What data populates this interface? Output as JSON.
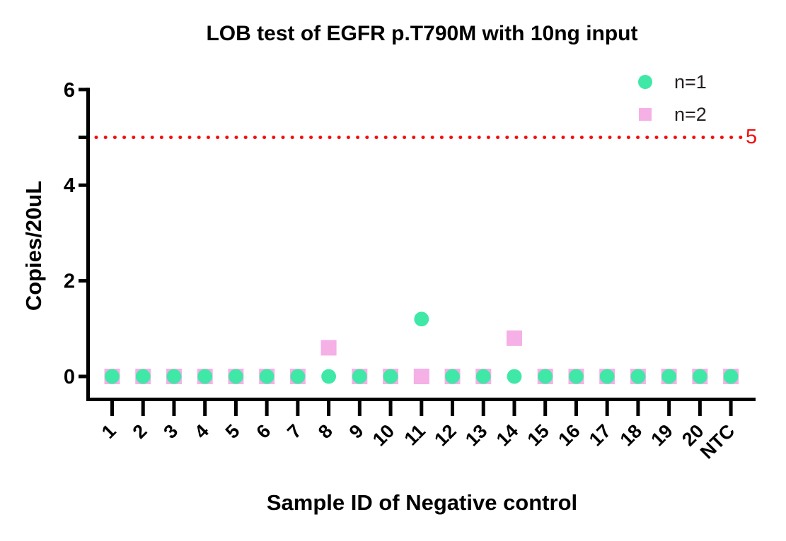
{
  "chart_data": {
    "type": "scatter",
    "title": "LOB test of EGFR p.T790M with 10ng input",
    "xlabel": "Sample ID of Negative control",
    "ylabel": "Copies/20uL",
    "categories": [
      "1",
      "2",
      "3",
      "4",
      "5",
      "6",
      "7",
      "8",
      "9",
      "10",
      "11",
      "12",
      "13",
      "14",
      "15",
      "16",
      "17",
      "18",
      "19",
      "20",
      "NTC"
    ],
    "series": [
      {
        "name": "n=1",
        "marker": "circle",
        "color": "#3fe8a6",
        "values": [
          0,
          0,
          0,
          0,
          0,
          0,
          0,
          0,
          0,
          0,
          1.2,
          0,
          0,
          0,
          0,
          0,
          0,
          0,
          0,
          0,
          0
        ]
      },
      {
        "name": "n=2",
        "marker": "square",
        "color": "#f5b0e6",
        "values": [
          0,
          0,
          0,
          0,
          0,
          0,
          0,
          0.6,
          0,
          0,
          0,
          0,
          0,
          0.8,
          0,
          0,
          0,
          0,
          0,
          0,
          0
        ]
      }
    ],
    "ylim": [
      0,
      6
    ],
    "yticks_labeled": [
      6,
      4,
      2,
      0
    ],
    "yticks_unlabeled": [
      5
    ],
    "threshold_line": {
      "value": 5,
      "label": "5",
      "color": "#f20d0d",
      "style": "dotted"
    },
    "axis_color": "#000000",
    "grid": false,
    "legend_position": "top-right",
    "xtick_rotation_deg": 45
  }
}
